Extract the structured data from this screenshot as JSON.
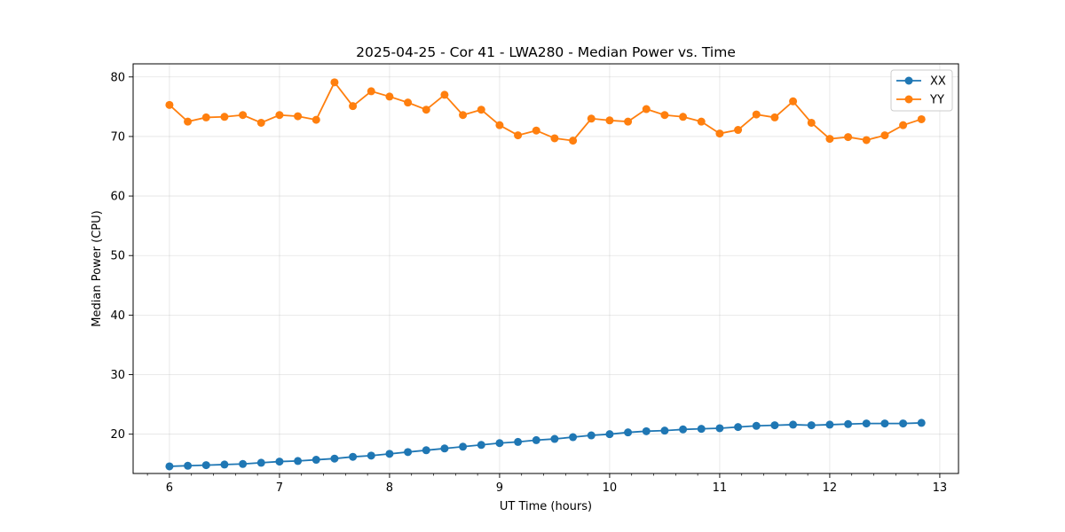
{
  "chart_data": {
    "type": "line",
    "title": "2025-04-25 - Cor 41 - LWA280 - Median Power vs. Time",
    "xlabel": "UT Time (hours)",
    "ylabel": "Median Power (CPU)",
    "xlim": [
      5.67,
      13.17
    ],
    "ylim": [
      13.4,
      82.2
    ],
    "xticks": [
      6,
      7,
      8,
      9,
      10,
      11,
      12,
      13
    ],
    "yticks": [
      20,
      30,
      40,
      50,
      60,
      70,
      80
    ],
    "xtick_labels": [
      "6",
      "7",
      "8",
      "9",
      "10",
      "11",
      "12",
      "13"
    ],
    "ytick_labels": [
      "20",
      "30",
      "40",
      "50",
      "60",
      "70",
      "80"
    ],
    "grid": true,
    "legend_position": "top-right",
    "x": [
      6.0,
      6.1667,
      6.3333,
      6.5,
      6.6667,
      6.8333,
      7.0,
      7.1667,
      7.3333,
      7.5,
      7.6667,
      7.8333,
      8.0,
      8.1667,
      8.3333,
      8.5,
      8.6667,
      8.8333,
      9.0,
      9.1667,
      9.3333,
      9.5,
      9.6667,
      9.8333,
      10.0,
      10.1667,
      10.3333,
      10.5,
      10.6667,
      10.8333,
      11.0,
      11.1667,
      11.3333,
      11.5,
      11.6667,
      11.8333,
      12.0,
      12.1667,
      12.3333,
      12.5,
      12.6667,
      12.8333
    ],
    "series": [
      {
        "name": "XX",
        "color": "#1f77b4",
        "values": [
          14.6,
          14.7,
          14.8,
          14.9,
          15.0,
          15.2,
          15.4,
          15.5,
          15.7,
          15.9,
          16.2,
          16.4,
          16.7,
          17.0,
          17.3,
          17.6,
          17.9,
          18.2,
          18.5,
          18.7,
          19.0,
          19.2,
          19.5,
          19.8,
          20.0,
          20.3,
          20.5,
          20.6,
          20.8,
          20.9,
          21.0,
          21.2,
          21.4,
          21.5,
          21.6,
          21.5,
          21.6,
          21.7,
          21.8,
          21.8,
          21.8,
          21.9
        ]
      },
      {
        "name": "YY",
        "color": "#ff7f0e",
        "values": [
          75.3,
          72.5,
          73.2,
          73.3,
          73.6,
          72.3,
          73.6,
          73.4,
          72.8,
          79.1,
          75.1,
          77.6,
          76.7,
          75.7,
          74.5,
          77.0,
          73.6,
          74.5,
          71.9,
          70.2,
          71.0,
          69.7,
          69.3,
          73.0,
          72.7,
          72.5,
          74.6,
          73.6,
          73.3,
          72.5,
          70.5,
          71.1,
          73.7,
          73.2,
          75.9,
          72.3,
          69.6,
          69.9,
          69.4,
          70.2,
          71.9,
          72.9
        ]
      }
    ]
  }
}
